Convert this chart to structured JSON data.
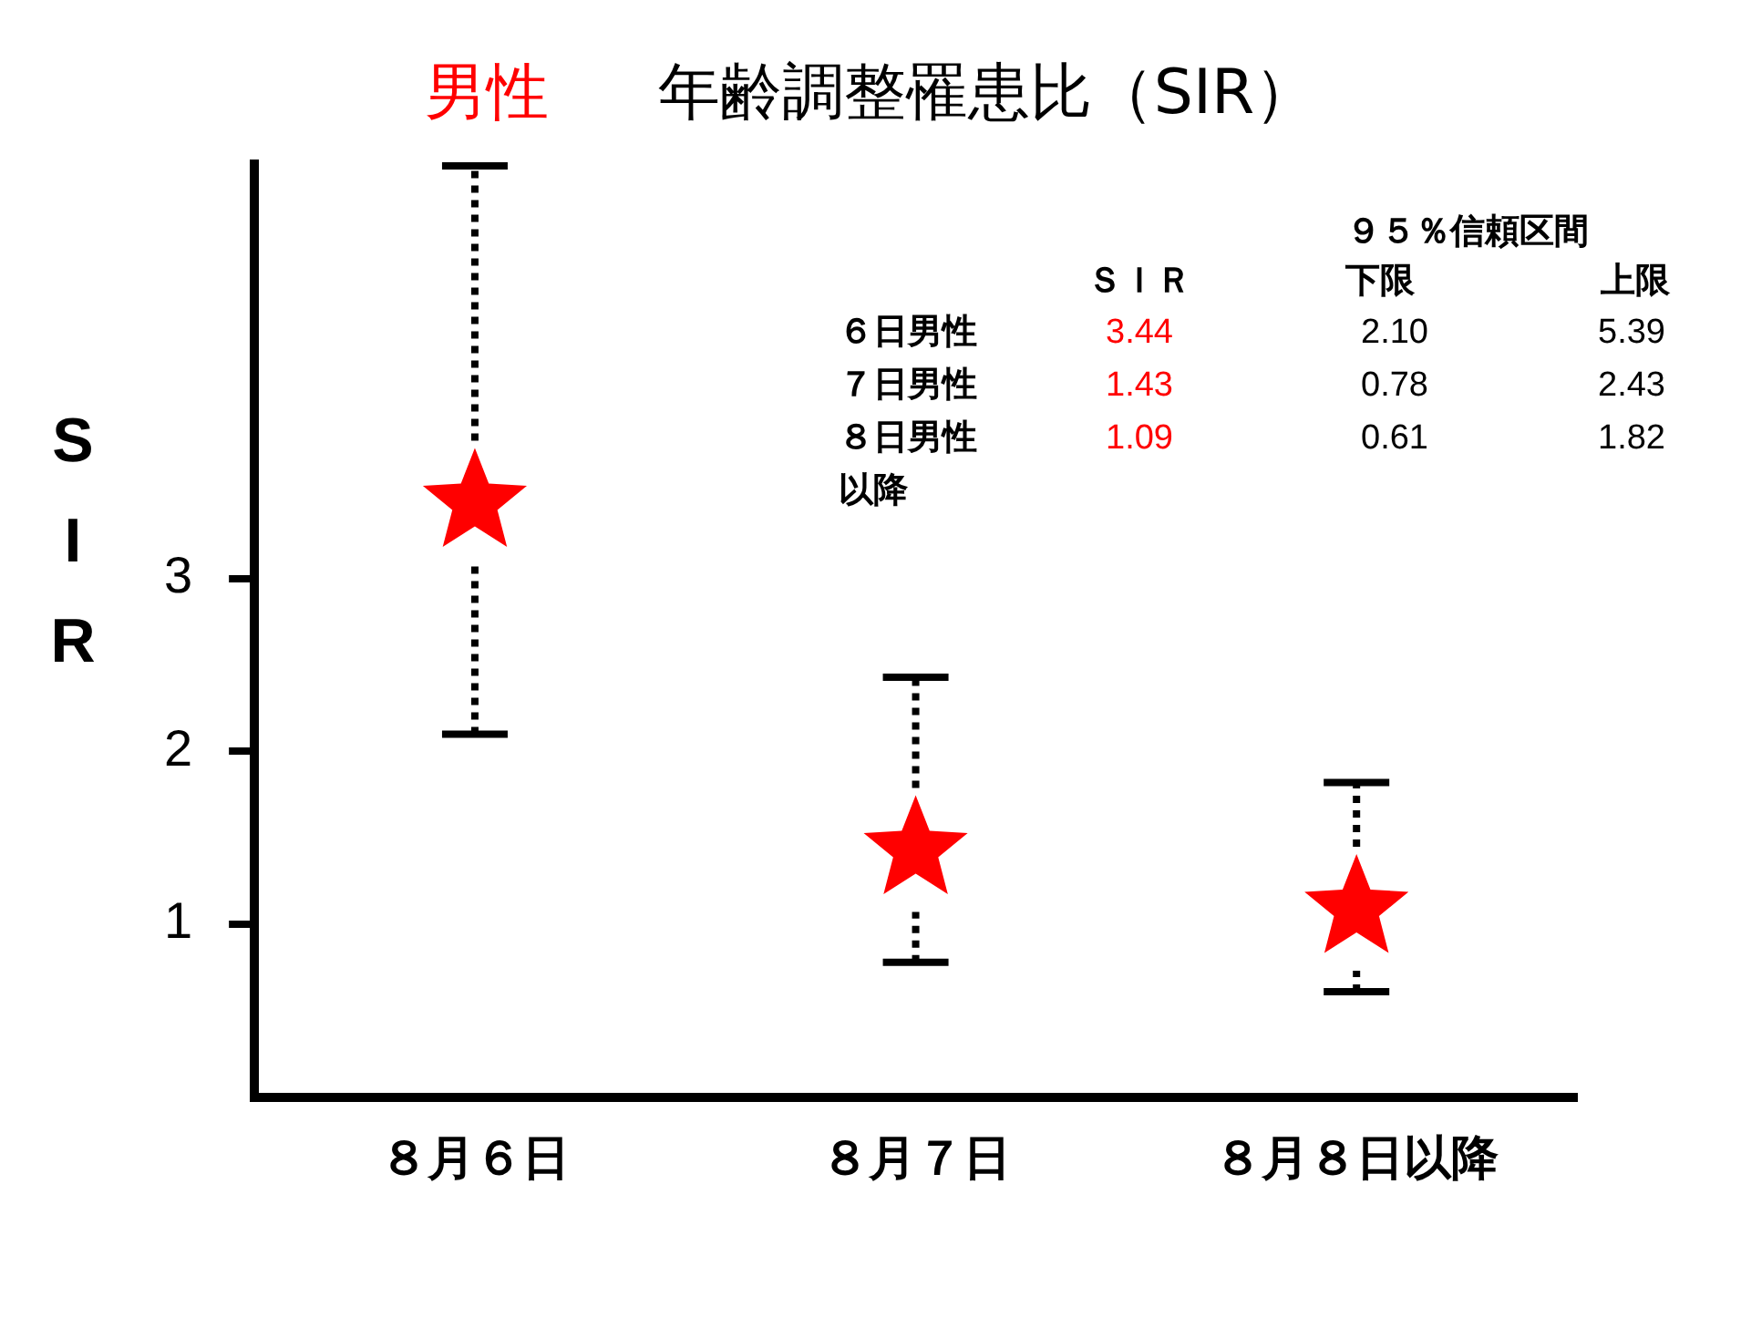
{
  "chart_data": {
    "type": "scatter",
    "title": "男性",
    "subtitle": "年齢調整罹患比（SIR）",
    "ylabel": "SIR",
    "categories": [
      "８月６日",
      "８月７日",
      "８月８日以降"
    ],
    "series": [
      {
        "color": "#ff0000",
        "values": [
          3.44,
          1.43,
          1.09
        ],
        "errors": [
          [
            2.1,
            5.39
          ],
          [
            0.78,
            2.43
          ],
          [
            0.61,
            1.82
          ]
        ]
      }
    ],
    "ylim": [
      0,
      5.4
    ],
    "yticks": [
      1,
      2,
      3
    ],
    "marker": "star",
    "grid": false,
    "legend": false,
    "annotations": [
      "９５％信頼区間",
      "ＳＩＲ",
      "下限",
      "上限",
      "６日男性",
      "3.44",
      "2.10",
      "5.39",
      "７日男性",
      "1.43",
      "0.78",
      "2.43",
      "８日男性",
      "1.09",
      "0.61",
      "1.82",
      "以降"
    ]
  }
}
